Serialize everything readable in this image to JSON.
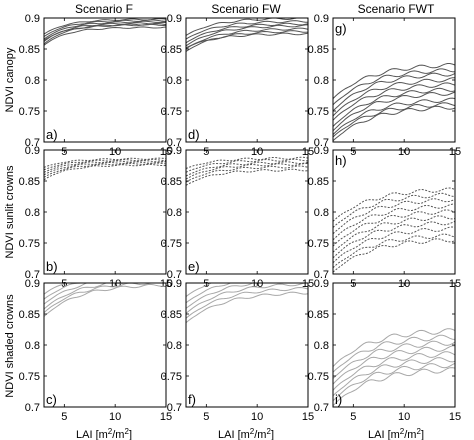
{
  "column_titles": [
    "Scenario F",
    "Scenario FW",
    "Scenario FWT"
  ],
  "row_labels": [
    "NDVI canopy",
    "NDVI sunlit crowns",
    "NDVI shaded crowns"
  ],
  "x_axis_label": {
    "prefix": "LAI [m",
    "sup1": "2",
    "mid": "/m",
    "sup2": "2",
    "suffix": "]"
  },
  "colors": {
    "dark": "#555555",
    "mid": "#777777",
    "light": "#a8a8a8",
    "axis": "#000000"
  },
  "chart_data": [
    {
      "panel": "a)",
      "row": 0,
      "col": 0,
      "type": "line",
      "line_style": "solid",
      "line_color": "dark",
      "xlim": [
        3,
        15
      ],
      "ylim": [
        0.7,
        0.9
      ],
      "xticks": [
        5,
        10,
        15
      ],
      "yticks": [
        0.7,
        0.75,
        0.8,
        0.85,
        0.9
      ],
      "curve_shape": {
        "k": 0.45,
        "noise": 0.001
      },
      "series": [
        {
          "start": 0.874,
          "plateau": 0.898
        },
        {
          "start": 0.87,
          "plateau": 0.896
        },
        {
          "start": 0.866,
          "plateau": 0.894
        },
        {
          "start": 0.862,
          "plateau": 0.892
        },
        {
          "start": 0.858,
          "plateau": 0.89
        },
        {
          "start": 0.864,
          "plateau": 0.889
        },
        {
          "start": 0.856,
          "plateau": 0.885
        }
      ]
    },
    {
      "panel": "d)",
      "row": 0,
      "col": 1,
      "type": "line",
      "line_style": "solid",
      "line_color": "dark",
      "xlim": [
        3,
        15
      ],
      "ylim": [
        0.7,
        0.9
      ],
      "xticks": [
        5,
        10,
        15
      ],
      "yticks": [
        0.7,
        0.75,
        0.8,
        0.85,
        0.9
      ],
      "curve_shape": {
        "k": 0.35,
        "noise": 0.0015
      },
      "series": [
        {
          "start": 0.872,
          "plateau": 0.9
        },
        {
          "start": 0.866,
          "plateau": 0.895
        },
        {
          "start": 0.86,
          "plateau": 0.891
        },
        {
          "start": 0.855,
          "plateau": 0.888
        },
        {
          "start": 0.85,
          "plateau": 0.883
        },
        {
          "start": 0.846,
          "plateau": 0.879
        },
        {
          "start": 0.852,
          "plateau": 0.875
        }
      ]
    },
    {
      "panel": "g)",
      "row": 0,
      "col": 2,
      "type": "line",
      "line_style": "solid",
      "line_color": "dark",
      "xlim": [
        3,
        15
      ],
      "ylim": [
        0.7,
        0.9
      ],
      "xticks": [
        5,
        10,
        15
      ],
      "yticks": [
        0.7,
        0.75,
        0.8,
        0.85,
        0.9
      ],
      "curve_shape": {
        "k": 0.28,
        "noise": 0.003
      },
      "series": [
        {
          "start": 0.77,
          "plateau": 0.826
        },
        {
          "start": 0.76,
          "plateau": 0.818
        },
        {
          "start": 0.75,
          "plateau": 0.812
        },
        {
          "start": 0.742,
          "plateau": 0.803
        },
        {
          "start": 0.735,
          "plateau": 0.795
        },
        {
          "start": 0.725,
          "plateau": 0.787
        },
        {
          "start": 0.718,
          "plateau": 0.781
        },
        {
          "start": 0.712,
          "plateau": 0.77
        },
        {
          "start": 0.708,
          "plateau": 0.763
        },
        {
          "start": 0.702,
          "plateau": 0.758
        }
      ]
    },
    {
      "panel": "b)",
      "row": 1,
      "col": 0,
      "type": "line",
      "line_style": "dotted",
      "line_color": "dark",
      "xlim": [
        3,
        15
      ],
      "ylim": [
        0.7,
        0.9
      ],
      "xticks": [
        5,
        10,
        15
      ],
      "yticks": [
        0.7,
        0.75,
        0.8,
        0.85,
        0.9
      ],
      "curve_shape": {
        "k": 0.45,
        "noise": 0.001
      },
      "series": [
        {
          "start": 0.872,
          "plateau": 0.886
        },
        {
          "start": 0.868,
          "plateau": 0.884
        },
        {
          "start": 0.864,
          "plateau": 0.882
        },
        {
          "start": 0.86,
          "plateau": 0.88
        },
        {
          "start": 0.856,
          "plateau": 0.878
        },
        {
          "start": 0.852,
          "plateau": 0.876
        }
      ]
    },
    {
      "panel": "e)",
      "row": 1,
      "col": 1,
      "type": "line",
      "line_style": "dotted",
      "line_color": "dark",
      "xlim": [
        3,
        15
      ],
      "ylim": [
        0.7,
        0.9
      ],
      "xticks": [
        5,
        10,
        15
      ],
      "yticks": [
        0.7,
        0.75,
        0.8,
        0.85,
        0.9
      ],
      "curve_shape": {
        "k": 0.4,
        "noise": 0.0015
      },
      "series": [
        {
          "start": 0.87,
          "plateau": 0.887
        },
        {
          "start": 0.864,
          "plateau": 0.884
        },
        {
          "start": 0.858,
          "plateau": 0.88
        },
        {
          "start": 0.853,
          "plateau": 0.877
        },
        {
          "start": 0.848,
          "plateau": 0.873
        },
        {
          "start": 0.843,
          "plateau": 0.868
        }
      ]
    },
    {
      "panel": "h)",
      "row": 1,
      "col": 2,
      "type": "line",
      "line_style": "dotted",
      "line_color": "dark",
      "xlim": [
        3,
        15
      ],
      "ylim": [
        0.7,
        0.9
      ],
      "xticks": [
        5,
        10,
        15
      ],
      "yticks": [
        0.7,
        0.75,
        0.8,
        0.85,
        0.9
      ],
      "curve_shape": {
        "k": 0.28,
        "noise": 0.003
      },
      "series": [
        {
          "start": 0.785,
          "plateau": 0.838
        },
        {
          "start": 0.775,
          "plateau": 0.83
        },
        {
          "start": 0.765,
          "plateau": 0.822
        },
        {
          "start": 0.755,
          "plateau": 0.812
        },
        {
          "start": 0.745,
          "plateau": 0.803
        },
        {
          "start": 0.735,
          "plateau": 0.794
        },
        {
          "start": 0.726,
          "plateau": 0.785
        },
        {
          "start": 0.718,
          "plateau": 0.775
        },
        {
          "start": 0.71,
          "plateau": 0.764
        },
        {
          "start": 0.703,
          "plateau": 0.757
        }
      ]
    },
    {
      "panel": "c)",
      "row": 2,
      "col": 0,
      "type": "line",
      "line_style": "solid",
      "line_color": "light",
      "xlim": [
        3,
        15
      ],
      "ylim": [
        0.7,
        0.9
      ],
      "xticks": [
        5,
        10,
        15
      ],
      "yticks": [
        0.7,
        0.75,
        0.8,
        0.85,
        0.9
      ],
      "curve_shape": {
        "k": 0.3,
        "noise": 0.002
      },
      "series": [
        {
          "start": 0.882,
          "plateau": 0.922
        },
        {
          "start": 0.874,
          "plateau": 0.916
        },
        {
          "start": 0.866,
          "plateau": 0.911
        },
        {
          "start": 0.858,
          "plateau": 0.906
        },
        {
          "start": 0.852,
          "plateau": 0.902
        },
        {
          "start": 0.846,
          "plateau": 0.898
        }
      ]
    },
    {
      "panel": "f)",
      "row": 2,
      "col": 1,
      "type": "line",
      "line_style": "solid",
      "line_color": "light",
      "xlim": [
        3,
        15
      ],
      "ylim": [
        0.7,
        0.9
      ],
      "xticks": [
        5,
        10,
        15
      ],
      "yticks": [
        0.7,
        0.75,
        0.8,
        0.85,
        0.9
      ],
      "curve_shape": {
        "k": 0.28,
        "noise": 0.002
      },
      "series": [
        {
          "start": 0.878,
          "plateau": 0.922
        },
        {
          "start": 0.868,
          "plateau": 0.914
        },
        {
          "start": 0.859,
          "plateau": 0.907
        },
        {
          "start": 0.851,
          "plateau": 0.9
        },
        {
          "start": 0.843,
          "plateau": 0.893
        },
        {
          "start": 0.836,
          "plateau": 0.886
        }
      ]
    },
    {
      "panel": "i)",
      "row": 2,
      "col": 2,
      "type": "line",
      "line_style": "solid",
      "line_color": "light",
      "xlim": [
        3,
        15
      ],
      "ylim": [
        0.7,
        0.9
      ],
      "xticks": [
        5,
        10,
        15
      ],
      "yticks": [
        0.7,
        0.75,
        0.8,
        0.85,
        0.9
      ],
      "curve_shape": {
        "k": 0.28,
        "noise": 0.004
      },
      "series": [
        {
          "start": 0.765,
          "plateau": 0.825
        },
        {
          "start": 0.756,
          "plateau": 0.815
        },
        {
          "start": 0.746,
          "plateau": 0.806
        },
        {
          "start": 0.737,
          "plateau": 0.797
        },
        {
          "start": 0.727,
          "plateau": 0.788
        },
        {
          "start": 0.718,
          "plateau": 0.779
        },
        {
          "start": 0.71,
          "plateau": 0.77
        },
        {
          "start": 0.702,
          "plateau": 0.762
        }
      ]
    }
  ]
}
